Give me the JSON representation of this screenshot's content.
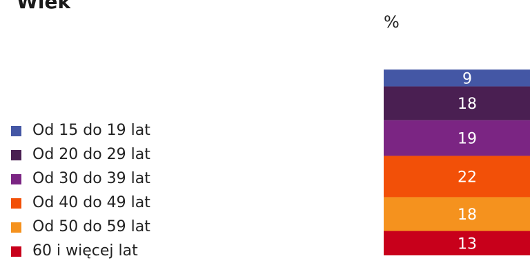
{
  "title": "Wiek",
  "chart_data": {
    "type": "bar",
    "stacked": true,
    "unit": "%",
    "categories": [
      ""
    ],
    "ylim": [
      0,
      100
    ],
    "series": [
      {
        "name": "Od 15 do 19 lat",
        "values": [
          9
        ],
        "color": "#4457a5"
      },
      {
        "name": "Od 20 do 29 lat",
        "values": [
          18
        ],
        "color": "#4a1f52"
      },
      {
        "name": "Od 30 do 39 lat",
        "values": [
          19
        ],
        "color": "#7b2583"
      },
      {
        "name": "Od 40 do 49 lat",
        "values": [
          22
        ],
        "color": "#f25008"
      },
      {
        "name": "Od 50 do 59 lat",
        "values": [
          18
        ],
        "color": "#f5921e"
      },
      {
        "name": "60 i więcej lat",
        "values": [
          13
        ],
        "color": "#c8001b"
      }
    ],
    "data_label_color": "#ffffff",
    "legend": "left"
  }
}
